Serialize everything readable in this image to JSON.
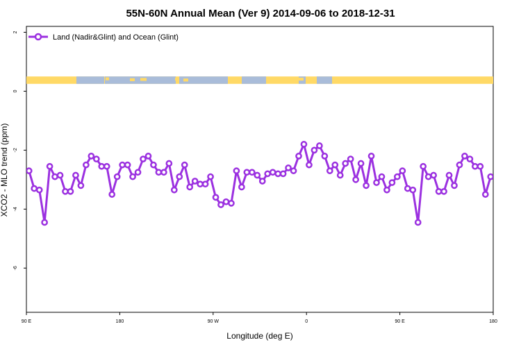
{
  "chart_data": {
    "type": "line",
    "title": "55N-60N Annual Mean (Ver 9)   2014-09-06 to 2018-12-31",
    "xlabel": "Longitude (deg E)",
    "ylabel": "XCO2 - MLO trend (ppm)",
    "xlim": [
      90,
      450
    ],
    "ylim": [
      -7.5,
      2.2
    ],
    "x_ticks": [
      {
        "value": 90,
        "label": "90 E"
      },
      {
        "value": 162,
        "label": "180"
      },
      {
        "value": 234,
        "label": "90 W"
      },
      {
        "value": 306,
        "label": "0"
      },
      {
        "value": 378,
        "label": "90 E"
      },
      {
        "value": 450,
        "label": "180"
      }
    ],
    "y_ticks": [
      {
        "value": 2,
        "label": "2"
      },
      {
        "value": 0,
        "label": "0"
      },
      {
        "value": -2,
        "label": "-2"
      },
      {
        "value": -4,
        "label": "-4"
      },
      {
        "value": -6,
        "label": "-6"
      }
    ],
    "legend_position": "top-left",
    "land_ocean_band": {
      "y_low": 0.25,
      "y_high": 0.5,
      "land_color": "#ffd966",
      "ocean_color": "#a9bcd9"
    },
    "series": [
      {
        "name": "Land (Nadir&Glint) and Ocean (Glint)",
        "color": "#9b30e0",
        "x": [
          92,
          96,
          100,
          104,
          108,
          112,
          116,
          120,
          124,
          128,
          132,
          136,
          140,
          144,
          148,
          152,
          156,
          160,
          164,
          168,
          172,
          176,
          180,
          184,
          188,
          192,
          196,
          200,
          204,
          208,
          212,
          216,
          220,
          224,
          228,
          232,
          236,
          240,
          244,
          248,
          252,
          256,
          260,
          264,
          268,
          272,
          276,
          280,
          284,
          288,
          292,
          296,
          300,
          304,
          308,
          312,
          316,
          320,
          324,
          328,
          332,
          336,
          340,
          344,
          348,
          352,
          356,
          360,
          364,
          368,
          372,
          376,
          380,
          384,
          388,
          392,
          396,
          400,
          404,
          408,
          412,
          416,
          420,
          424,
          428,
          432,
          436,
          440,
          444,
          448
        ],
        "values": [
          -2.7,
          -3.3,
          -3.35,
          -4.45,
          -2.55,
          -2.9,
          -2.85,
          -3.4,
          -3.4,
          -2.85,
          -3.2,
          -2.5,
          -2.2,
          -2.3,
          -2.55,
          -2.55,
          -3.5,
          -2.9,
          -2.5,
          -2.5,
          -2.9,
          -2.75,
          -2.3,
          -2.2,
          -2.5,
          -2.75,
          -2.75,
          -2.45,
          -3.35,
          -2.9,
          -2.5,
          -3.25,
          -3.05,
          -3.15,
          -3.15,
          -2.9,
          -3.6,
          -3.85,
          -3.75,
          -3.8,
          -2.7,
          -3.25,
          -2.75,
          -2.75,
          -2.85,
          -3.05,
          -2.8,
          -2.75,
          -2.8,
          -2.8,
          -2.6,
          -2.7,
          -2.2,
          -1.8,
          -2.5,
          -2.0,
          -1.85,
          -2.2,
          -2.7,
          -2.5,
          -2.85,
          -2.45,
          -2.3,
          -3.0,
          -2.45,
          -3.2,
          -2.2,
          -3.1,
          -2.9,
          -3.35,
          -3.1,
          -2.9,
          -2.7,
          -3.3,
          -3.35,
          -4.45,
          -2.55,
          -2.9,
          -2.85,
          -3.4,
          -3.4,
          -2.85,
          -3.2,
          -2.5,
          -2.2,
          -2.3,
          -2.55,
          -2.55,
          -3.5,
          -2.9
        ]
      }
    ]
  }
}
